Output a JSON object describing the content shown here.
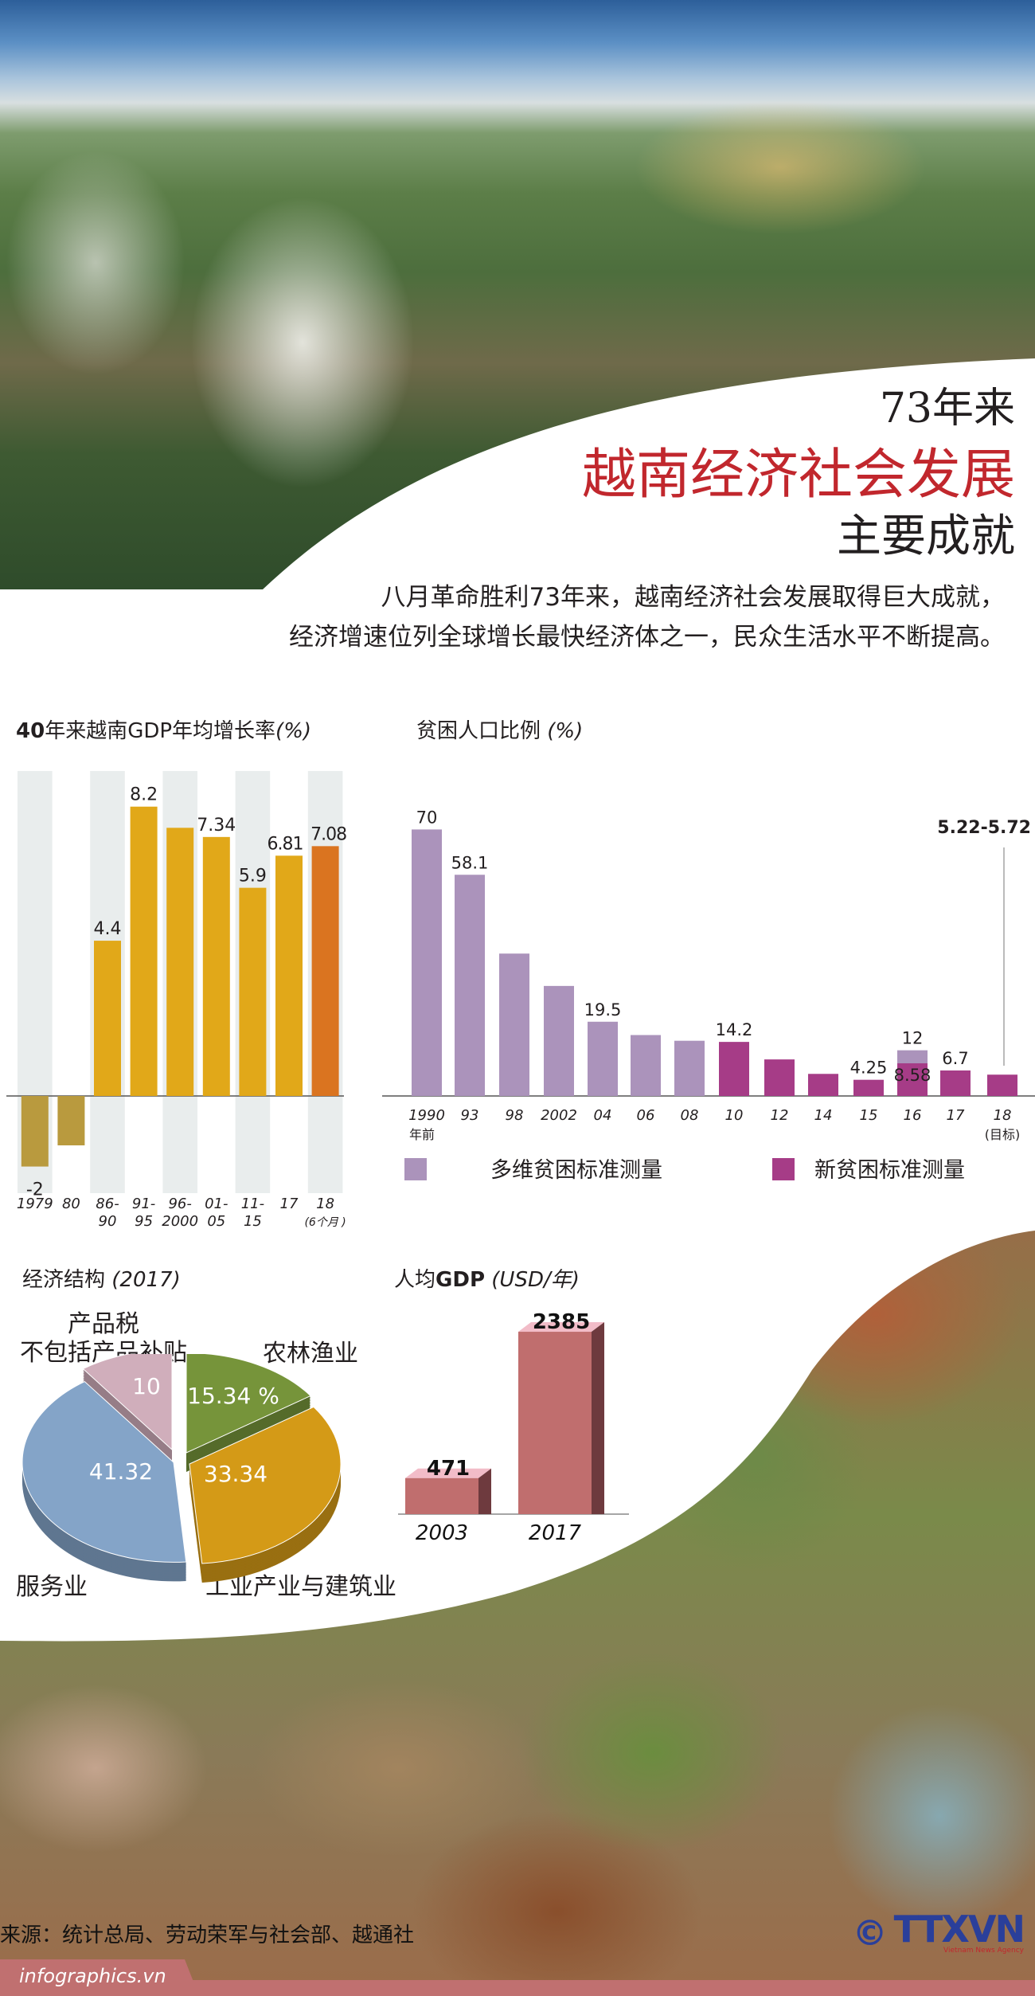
{
  "header": {
    "title_line1": "73年来",
    "title_line2": "越南经济社会发展",
    "title_line3": "主要成就",
    "title_accent_color": "#c1272d",
    "intro_line1": "八月革命胜利73年来，越南经济社会发展取得巨大成就，",
    "intro_line2": "经济增速位列全球增长最快经济体之一，民众生活水平不断提高。"
  },
  "chart_data": [
    {
      "type": "bar",
      "title": "40年来越南GDP年均增长率",
      "title_bold": "40",
      "title_rest": "年来越南GDP年均增长率",
      "unit": "(%)",
      "categories": [
        "1979",
        "80",
        "86-90",
        "91-95",
        "96-2000",
        "01-05",
        "11-15",
        "17",
        "18"
      ],
      "category_lines": [
        [
          "1979"
        ],
        [
          "80"
        ],
        [
          "86-",
          "90"
        ],
        [
          "91-",
          "95"
        ],
        [
          "96-",
          "2000"
        ],
        [
          "01-",
          "05"
        ],
        [
          "11-",
          "15"
        ],
        [
          "17"
        ],
        [
          "18",
          "(6个月 )"
        ]
      ],
      "values": [
        -2,
        -1.4,
        4.4,
        8.2,
        7.6,
        7.34,
        5.9,
        6.81,
        7.08
      ],
      "value_labels": [
        "-2",
        "",
        "4.4",
        "8.2",
        "",
        "7.34",
        "5.9",
        "6.81",
        "7.08"
      ],
      "colors": {
        "negative": "#b99a3e",
        "positive": "#e1a819",
        "highlight": "#da7420",
        "column_bg": "#e9eded"
      },
      "ylim": [
        -2.5,
        9
      ],
      "grid": false
    },
    {
      "type": "bar",
      "title": "贫困人口比例",
      "unit": "(%)",
      "categories": [
        "1990",
        "93",
        "98",
        "2002",
        "04",
        "06",
        "08",
        "10",
        "12",
        "14",
        "15",
        "16",
        "17",
        "18"
      ],
      "category_sublabels": [
        "年前",
        "",
        "",
        "",
        "",
        "",
        "",
        "",
        "",
        "",
        "",
        "",
        "",
        "(目标)"
      ],
      "series": [
        {
          "name": "多维贫困标准测量",
          "color": "#ab93bb",
          "values": [
            70,
            58.1,
            37.4,
            28.9,
            19.5,
            16,
            14.5,
            null,
            null,
            null,
            null,
            12,
            null,
            null
          ]
        },
        {
          "name": "新贫困标准测量",
          "color": "#a63c87",
          "values": [
            null,
            null,
            null,
            null,
            null,
            null,
            null,
            14.2,
            9.6,
            5.8,
            4.25,
            8.58,
            6.7,
            5.6
          ]
        }
      ],
      "value_labels": {
        "0": "70",
        "1": "58.1",
        "4": "19.5",
        "7": "14.2",
        "10": "4.25",
        "11": "12",
        "11b": "8.58",
        "12": "6.7"
      },
      "annotation": "5.22-5.72",
      "ylim": [
        0,
        75
      ],
      "legend": "bottom",
      "grid": false
    },
    {
      "type": "pie",
      "title": "经济结构",
      "title_year": "(2017)",
      "slices": [
        {
          "label": "农林渔业",
          "value": 15.34,
          "value_label": "15.34 %",
          "color": "#76943a"
        },
        {
          "label": "工业产业与建筑业",
          "value": 33.34,
          "value_label": "33.34",
          "color": "#d49a17"
        },
        {
          "label": "服务业",
          "value": 41.32,
          "value_label": "41.32",
          "color": "#84a4c8"
        },
        {
          "label_line1": "产品税",
          "label_line2": "不包括产品补贴",
          "value": 10,
          "value_label": "10",
          "color": "#d0aebb"
        }
      ]
    },
    {
      "type": "bar",
      "title": "人均GDP",
      "title_pre": "人均",
      "title_bold": "GDP",
      "unit": "(USD/年)",
      "categories": [
        "2003",
        "2017"
      ],
      "values": [
        471,
        2385
      ],
      "value_labels": [
        "471",
        "2385"
      ],
      "colors": {
        "front": "#c06e6e",
        "top": "#f2bcc8",
        "side": "#6e3a3e"
      },
      "ylim": [
        0,
        2500
      ]
    }
  ],
  "footer": {
    "source": "来源：统计总局、劳动荣军与社会部、越通社",
    "site": "infographics.vn",
    "logo_copyright": "©",
    "logo_text": "TTXVN",
    "logo_subtext": "Vietnam News Agency"
  }
}
